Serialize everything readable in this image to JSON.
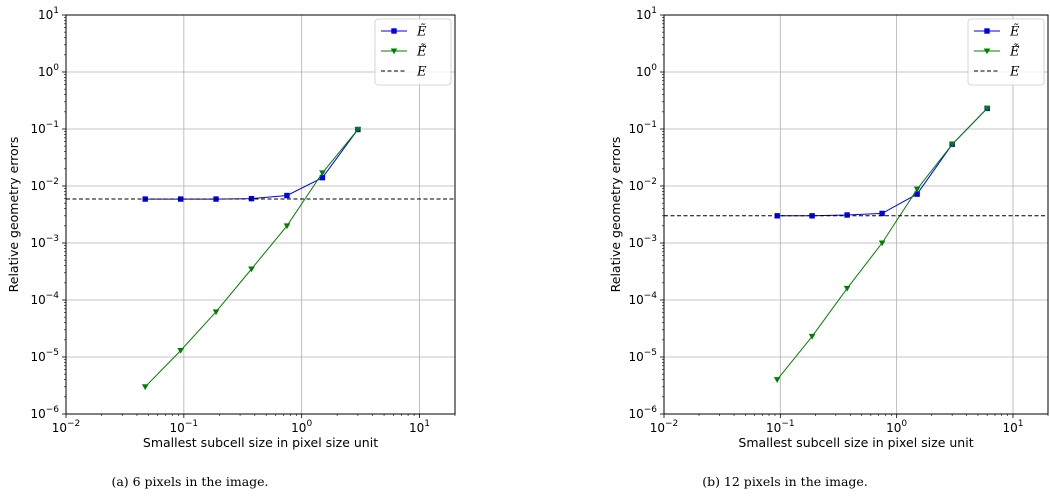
{
  "chart_data": [
    {
      "type": "line",
      "xscale": "log",
      "yscale": "log",
      "xlim": [
        0.01,
        20
      ],
      "ylim": [
        1e-06,
        10
      ],
      "xlabel": "Smallest subcell size in pixel size unit",
      "ylabel": "Relative geometry errors",
      "x_ticks": [
        {
          "value": 0.01,
          "base": "10",
          "exp": "−2"
        },
        {
          "value": 0.1,
          "base": "10",
          "exp": "−1"
        },
        {
          "value": 1,
          "base": "10",
          "exp": "0"
        },
        {
          "value": 10,
          "base": "10",
          "exp": "1"
        }
      ],
      "y_ticks": [
        {
          "value": 1e-06,
          "base": "10",
          "exp": "−6"
        },
        {
          "value": 1e-05,
          "base": "10",
          "exp": "−5"
        },
        {
          "value": 0.0001,
          "base": "10",
          "exp": "−4"
        },
        {
          "value": 0.001,
          "base": "10",
          "exp": "−3"
        },
        {
          "value": 0.01,
          "base": "10",
          "exp": "−2"
        },
        {
          "value": 0.1,
          "base": "10",
          "exp": "−1"
        },
        {
          "value": 1,
          "base": "10",
          "exp": "0"
        },
        {
          "value": 10,
          "base": "10",
          "exp": "1"
        }
      ],
      "grid": true,
      "legend_position": "top-right",
      "series": [
        {
          "name": "Ẽ",
          "color": "#0000ee",
          "marker": "square",
          "x": [
            0.047,
            0.094,
            0.1875,
            0.375,
            0.75,
            1.5,
            3.0
          ],
          "y": [
            0.0059,
            0.0059,
            0.0059,
            0.006,
            0.0068,
            0.014,
            0.098
          ]
        },
        {
          "name": "Ẽ̃",
          "color": "#008000",
          "marker": "triangle-down",
          "x": [
            0.047,
            0.094,
            0.1875,
            0.375,
            0.75,
            1.5,
            3.0
          ],
          "y": [
            3e-06,
            1.3e-05,
            6.2e-05,
            0.00035,
            0.002,
            0.017,
            0.098
          ]
        },
        {
          "name": "E",
          "color": "#000000",
          "style": "dashed",
          "y": 0.0059
        }
      ],
      "caption": "(a) 6 pixels in the image."
    },
    {
      "type": "line",
      "xscale": "log",
      "yscale": "log",
      "xlim": [
        0.01,
        20
      ],
      "ylim": [
        1e-06,
        10
      ],
      "xlabel": "Smallest subcell size in pixel size unit",
      "ylabel": "Relative geometry errors",
      "x_ticks": [
        {
          "value": 0.01,
          "base": "10",
          "exp": "−2"
        },
        {
          "value": 0.1,
          "base": "10",
          "exp": "−1"
        },
        {
          "value": 1,
          "base": "10",
          "exp": "0"
        },
        {
          "value": 10,
          "base": "10",
          "exp": "1"
        }
      ],
      "y_ticks": [
        {
          "value": 1e-06,
          "base": "10",
          "exp": "−6"
        },
        {
          "value": 1e-05,
          "base": "10",
          "exp": "−5"
        },
        {
          "value": 0.0001,
          "base": "10",
          "exp": "−4"
        },
        {
          "value": 0.001,
          "base": "10",
          "exp": "−3"
        },
        {
          "value": 0.01,
          "base": "10",
          "exp": "−2"
        },
        {
          "value": 0.1,
          "base": "10",
          "exp": "−1"
        },
        {
          "value": 1,
          "base": "10",
          "exp": "0"
        },
        {
          "value": 10,
          "base": "10",
          "exp": "1"
        }
      ],
      "grid": true,
      "legend_position": "top-right",
      "series": [
        {
          "name": "Ẽ",
          "color": "#0000ee",
          "marker": "square",
          "x": [
            0.094,
            0.1875,
            0.375,
            0.75,
            1.5,
            3.0,
            6.0
          ],
          "y": [
            0.003,
            0.003,
            0.0031,
            0.0033,
            0.0072,
            0.054,
            0.23
          ]
        },
        {
          "name": "Ẽ̃",
          "color": "#008000",
          "marker": "triangle-down",
          "x": [
            0.094,
            0.1875,
            0.375,
            0.75,
            1.5,
            3.0,
            6.0
          ],
          "y": [
            4e-06,
            2.3e-05,
            0.00016,
            0.001,
            0.0088,
            0.054,
            0.23
          ]
        },
        {
          "name": "E",
          "color": "#000000",
          "style": "dashed",
          "y": 0.003
        }
      ],
      "caption": "(b) 12 pixels in the image."
    }
  ]
}
